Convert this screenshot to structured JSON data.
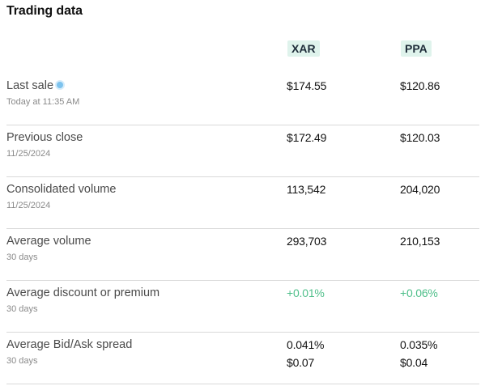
{
  "title": "Trading data",
  "tickers": [
    "XAR",
    "PPA"
  ],
  "colors": {
    "ticker_bg": "#dff3ec",
    "positive": "#4fbf8a",
    "live_dot": "#7dc3ee"
  },
  "rows": [
    {
      "label": "Last sale",
      "sub": "Today at 11:35 AM",
      "live_icon": "live-indicator-dot-icon",
      "xar": [
        "$174.55"
      ],
      "ppa": [
        "$120.86"
      ]
    },
    {
      "label": "Previous close",
      "sub": "11/25/2024",
      "xar": [
        "$172.49"
      ],
      "ppa": [
        "$120.03"
      ]
    },
    {
      "label": "Consolidated volume",
      "sub": "11/25/2024",
      "xar": [
        "113,542"
      ],
      "ppa": [
        "204,020"
      ]
    },
    {
      "label": "Average volume",
      "sub": "30 days",
      "xar": [
        "293,703"
      ],
      "ppa": [
        "210,153"
      ]
    },
    {
      "label": "Average discount or premium",
      "sub": "30 days",
      "xar": [
        "+0.01%"
      ],
      "ppa": [
        "+0.06%"
      ]
    },
    {
      "label": "Average Bid/Ask spread",
      "sub": "30 days",
      "xar": [
        "0.041%",
        "$0.07"
      ],
      "ppa": [
        "0.035%",
        "$0.04"
      ]
    }
  ]
}
